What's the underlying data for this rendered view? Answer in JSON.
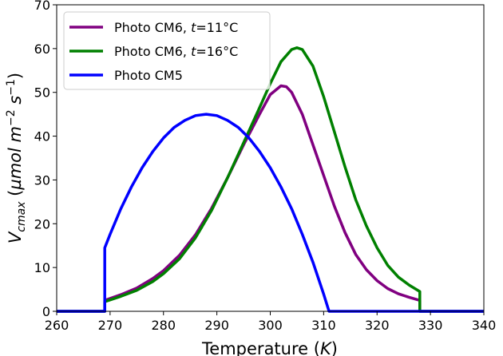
{
  "chart_data": {
    "type": "line",
    "title": "",
    "xlabel": "Temperature (K)",
    "xlabel_parts": [
      "Temperature (",
      "K",
      ")"
    ],
    "ylabel": "V_cmax (µmol m^-2 s^-1)",
    "xlim": [
      260,
      340
    ],
    "ylim": [
      0,
      70
    ],
    "xticks": [
      260,
      270,
      280,
      290,
      300,
      310,
      320,
      330,
      340
    ],
    "yticks": [
      0,
      10,
      20,
      30,
      40,
      50,
      60,
      70
    ],
    "grid": false,
    "legend_position": "top-left",
    "series": [
      {
        "name": "Photo CM6, t=11°C",
        "legend_parts": [
          "Photo CM6, ",
          "t",
          "=11°C"
        ],
        "color": "#800080",
        "x": [
          260,
          269,
          269,
          272,
          275,
          278,
          280,
          283,
          286,
          289,
          292,
          295,
          298,
          300,
          302,
          303,
          304,
          306,
          308,
          310,
          312,
          314,
          316,
          318,
          320,
          322,
          324,
          326,
          328,
          328,
          340
        ],
        "y": [
          0,
          0,
          2.5,
          3.8,
          5.3,
          7.5,
          9.3,
          12.8,
          17.5,
          23.5,
          30.5,
          38,
          45,
          49.5,
          51.5,
          51.3,
          50,
          45,
          38,
          31,
          24,
          18,
          13,
          9.5,
          7,
          5.2,
          4,
          3.2,
          2.5,
          0,
          0
        ]
      },
      {
        "name": "Photo CM6, t=16°C",
        "legend_parts": [
          "Photo CM6, ",
          "t",
          "=16°C"
        ],
        "color": "#008000",
        "x": [
          260,
          269,
          269,
          272,
          275,
          278,
          280,
          283,
          286,
          289,
          292,
          295,
          298,
          300,
          302,
          304,
          305,
          306,
          308,
          310,
          312,
          314,
          316,
          318,
          320,
          322,
          324,
          326,
          328,
          328,
          340
        ],
        "y": [
          0,
          0,
          2.2,
          3.4,
          4.8,
          6.8,
          8.6,
          12,
          16.8,
          23,
          30.5,
          38.5,
          46.5,
          52,
          57,
          59.8,
          60.2,
          59.8,
          56,
          49,
          41,
          33,
          25.5,
          19.5,
          14.5,
          10.5,
          7.8,
          6,
          4.5,
          0,
          0
        ]
      },
      {
        "name": "Photo CM5",
        "legend_parts": [
          "Photo CM5",
          "",
          ""
        ],
        "color": "#0000ff",
        "x": [
          260,
          269,
          269,
          270,
          272,
          274,
          276,
          278,
          280,
          282,
          284,
          286,
          288,
          290,
          292,
          294,
          296,
          298,
          300,
          302,
          304,
          306,
          308,
          310,
          311,
          340
        ],
        "y": [
          0,
          0,
          14.5,
          17.6,
          23.4,
          28.4,
          32.8,
          36.5,
          39.6,
          42.0,
          43.6,
          44.7,
          45,
          44.7,
          43.6,
          42.0,
          39.6,
          36.5,
          32.8,
          28.4,
          23.4,
          17.6,
          11.2,
          3.9,
          0,
          0
        ]
      }
    ]
  }
}
